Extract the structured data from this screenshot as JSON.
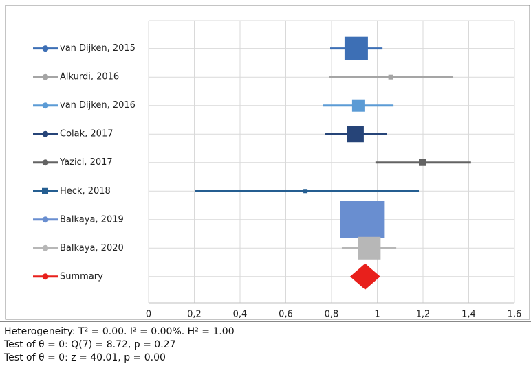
{
  "chart_data": {
    "type": "forest",
    "xlim": [
      0,
      1.6
    ],
    "xticks": [
      0,
      {
        "value": 0.2,
        "label": "0,2"
      },
      {
        "value": 0.4,
        "label": "0,4"
      },
      {
        "value": 0.6,
        "label": "0,6"
      },
      {
        "value": 0.8,
        "label": "0,8"
      },
      1,
      {
        "value": 1.2,
        "label": "1,2"
      },
      {
        "value": 1.4,
        "label": "1,4"
      },
      {
        "value": 1.6,
        "label": "1,6"
      }
    ],
    "grid": true,
    "series": [
      {
        "name": "van Dijken, 2015",
        "color": "#3d6fb5",
        "marker": "circle",
        "estimate": 0.908,
        "lower": 0.794,
        "upper": 1.023,
        "weight": 34
      },
      {
        "name": "Alkurdi, 2016",
        "color": "#a5a5a5",
        "marker": "circle",
        "estimate": 1.059,
        "lower": 0.788,
        "upper": 1.332,
        "weight": 7
      },
      {
        "name": "van Dijken, 2016",
        "color": "#5b9bd5",
        "marker": "circle",
        "estimate": 0.917,
        "lower": 0.761,
        "upper": 1.071,
        "weight": 18
      },
      {
        "name": "Colak, 2017",
        "color": "#264478",
        "marker": "circle",
        "estimate": 0.905,
        "lower": 0.773,
        "upper": 1.041,
        "weight": 24
      },
      {
        "name": "Yazici, 2017",
        "color": "#636363",
        "marker": "circle",
        "estimate": 1.197,
        "lower": 0.992,
        "upper": 1.41,
        "weight": 10
      },
      {
        "name": "Heck, 2018",
        "color": "#255e91",
        "marker": "square",
        "estimate": 0.686,
        "lower": 0.202,
        "upper": 1.182,
        "weight": 6
      },
      {
        "name": "Balkaya, 2019",
        "color": "#698ed0",
        "marker": "circle",
        "estimate": 0.935,
        "lower": 0.84,
        "upper": 1.03,
        "weight": 65
      },
      {
        "name": "Balkaya, 2020",
        "color": "#b7b7b7",
        "marker": "circle",
        "estimate": 0.965,
        "lower": 0.845,
        "upper": 1.083,
        "weight": 33
      },
      {
        "name": "Summary",
        "color": "#e8201c",
        "marker": "diamond",
        "estimate": 0.947,
        "lower": 0.881,
        "upper": 1.013
      }
    ],
    "notes": [
      "Heterogeneity: T² = 0.00. I² = 0.00%. H² = 1.00",
      "Test of θ = 0: Q(7) = 8.72, p = 0.27",
      "Test of θ = 0: z = 40.01, p = 0.00"
    ]
  }
}
